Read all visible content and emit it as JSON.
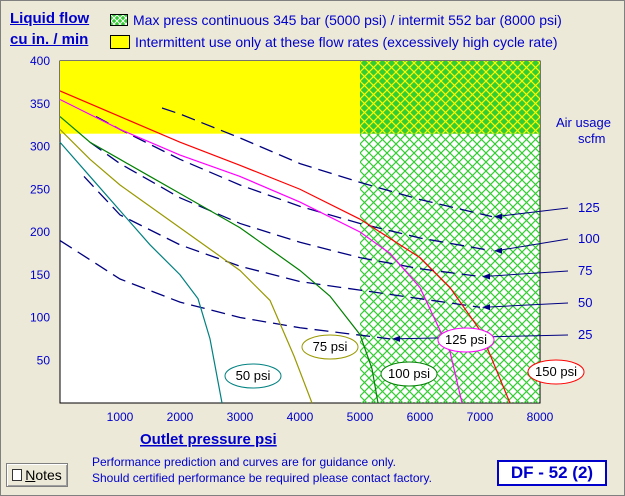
{
  "header": {
    "y_title_line1": "Liquid flow",
    "y_title_line2": "cu in. / min"
  },
  "legend": [
    {
      "text": "Max press continuous 345 bar (5000 psi) / intermit 552 bar (8000 psi)",
      "color": "#33cc33",
      "pattern": "crosshatch"
    },
    {
      "text": "Intermittent use only at these flow rates (excessively high cycle rate)",
      "color": "#ffff00",
      "pattern": "solid"
    }
  ],
  "air_usage_title_line1": "Air usage",
  "air_usage_title_line2": "scfm",
  "x_axis_title": "Outlet pressure   psi",
  "footnote_line1": "Performance prediction and curves are for guidance only.",
  "footnote_line2": "Should certified performance be required please contact factory.",
  "notes_button": {
    "first": "N",
    "rest": "otes"
  },
  "model": "DF - 52 (2)",
  "colors": {
    "accent": "#0000cc",
    "yellow": "#ffff00",
    "green": "#33cc33"
  },
  "chart_data": {
    "type": "line",
    "xlim": [
      0,
      8000
    ],
    "ylim": [
      0,
      400
    ],
    "x_ticks": [
      "1000",
      "2000",
      "3000",
      "4000",
      "5000",
      "6000",
      "7000",
      "8000"
    ],
    "y_ticks": [
      "50",
      "100",
      "150",
      "200",
      "250",
      "300",
      "350",
      "400"
    ],
    "regions": [
      {
        "kind": "yellow",
        "x": [
          0,
          8000
        ],
        "y": [
          315,
          400
        ]
      },
      {
        "kind": "green-hatch",
        "x": [
          5000,
          8000
        ],
        "y": [
          0,
          400
        ]
      }
    ],
    "series": [
      {
        "name": "50 psi",
        "color": "#008080",
        "x": [
          0,
          500,
          1000,
          1500,
          2000,
          2300,
          2500,
          2700
        ],
        "y": [
          305,
          265,
          225,
          185,
          150,
          122,
          75,
          0
        ]
      },
      {
        "name": "75 psi",
        "color": "#999900",
        "x": [
          0,
          500,
          1000,
          1500,
          2000,
          2500,
          3000,
          3500,
          3900,
          4200
        ],
        "y": [
          320,
          285,
          255,
          230,
          205,
          180,
          155,
          120,
          55,
          0
        ]
      },
      {
        "name": "100 psi",
        "color": "#008000",
        "x": [
          0,
          500,
          1000,
          1500,
          2000,
          2500,
          3000,
          3500,
          4000,
          4500,
          5000,
          5200,
          5300
        ],
        "y": [
          335,
          305,
          285,
          265,
          245,
          225,
          205,
          180,
          155,
          125,
          80,
          40,
          0
        ]
      },
      {
        "name": "125 psi",
        "color": "#ff00ff",
        "x": [
          0,
          1000,
          2000,
          3000,
          4000,
          5000,
          5500,
          6000,
          6500,
          6700
        ],
        "y": [
          355,
          320,
          290,
          265,
          235,
          200,
          175,
          135,
          60,
          0
        ]
      },
      {
        "name": "150 psi",
        "color": "#ff0000",
        "x": [
          0,
          1000,
          2000,
          3000,
          4000,
          5000,
          6000,
          6500,
          7000,
          7500
        ],
        "y": [
          365,
          335,
          305,
          278,
          250,
          215,
          170,
          135,
          85,
          0
        ]
      }
    ],
    "air_usage_lines": [
      {
        "value": "25",
        "x": [
          0,
          1000,
          2000,
          3000,
          4000,
          5500
        ],
        "y": [
          190,
          145,
          118,
          100,
          88,
          75
        ]
      },
      {
        "value": "50",
        "x": [
          400,
          1000,
          2000,
          3000,
          4000,
          5000,
          6000,
          7000
        ],
        "y": [
          265,
          220,
          185,
          160,
          142,
          132,
          122,
          112
        ]
      },
      {
        "value": "75",
        "x": [
          500,
          1000,
          2000,
          3000,
          4000,
          5000,
          6000,
          7000
        ],
        "y": [
          305,
          280,
          240,
          210,
          188,
          170,
          157,
          148
        ]
      },
      {
        "value": "100",
        "x": [
          600,
          1000,
          2000,
          3000,
          4000,
          5000,
          6000,
          7200
        ],
        "y": [
          335,
          320,
          285,
          255,
          230,
          210,
          193,
          178
        ]
      },
      {
        "value": "125",
        "x": [
          1700,
          2000,
          3000,
          4000,
          5000,
          6000,
          7200
        ],
        "y": [
          345,
          338,
          310,
          280,
          258,
          238,
          218
        ]
      }
    ]
  }
}
